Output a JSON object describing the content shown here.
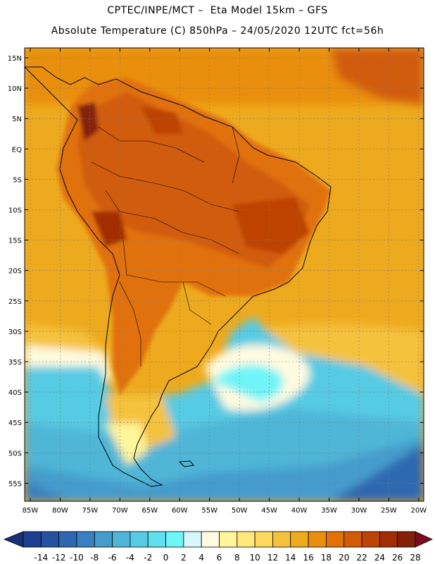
{
  "header": {
    "line1": "CPTEC/INPE/MCT –  Eta Model 15km – GFS",
    "line2": "Absolute Temperature (C) 850hPa – 24/05/2020 12UTC fct=56h"
  },
  "map": {
    "lat_labels": [
      "15N",
      "10N",
      "5N",
      "EQ",
      "5S",
      "10S",
      "15S",
      "20S",
      "25S",
      "30S",
      "35S",
      "40S",
      "45S",
      "50S",
      "55S"
    ],
    "lon_labels": [
      "85W",
      "80W",
      "75W",
      "70W",
      "65W",
      "60W",
      "55W",
      "50W",
      "45W",
      "40W",
      "35W",
      "30W",
      "25W",
      "20W"
    ]
  },
  "colorbar": {
    "ticks": [
      "-14",
      "-12",
      "-10",
      "-8",
      "-6",
      "-4",
      "-2",
      "0",
      "2",
      "4",
      "6",
      "8",
      "10",
      "12",
      "14",
      "16",
      "18",
      "20",
      "22",
      "24",
      "26",
      "28"
    ],
    "colors": [
      "#1e3f8f",
      "#2452a0",
      "#2e67b0",
      "#3a7fbf",
      "#449bcc",
      "#4fb6d8",
      "#57cbe4",
      "#5ee0ee",
      "#6ff4f7",
      "#d6f7fb",
      "#fffbe0",
      "#fff59a",
      "#ffe97a",
      "#fcd95c",
      "#f5c23e",
      "#eeaa1e",
      "#e98f10",
      "#e17109",
      "#d25b08",
      "#be4306",
      "#a22d05",
      "#84200a"
    ],
    "low_color": "#1a2f75",
    "high_color": "#7a0e1f"
  }
}
